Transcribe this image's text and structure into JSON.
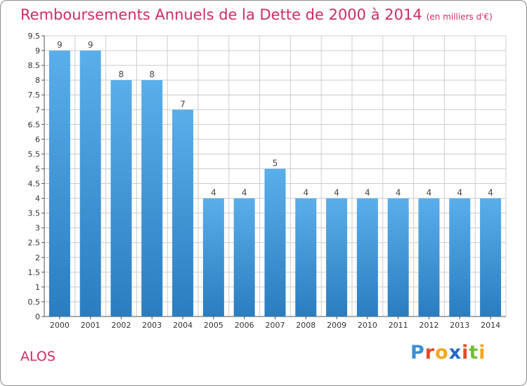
{
  "title": "Remboursements Annuels de la Dette de 2000 à 2014",
  "subtitle": "(en milliers d'€)",
  "commune": "ALOS",
  "logo": {
    "text": "Proxiti",
    "colors": [
      "#3b8fd6",
      "#e14b2b",
      "#f4a61c",
      "#2a67c4",
      "#e14b2b",
      "#6fbf3a",
      "#f4a61c"
    ]
  },
  "colors": {
    "bar_top": "#5aaeea",
    "bar_bottom": "#2a7dc0",
    "title": "#cf2c63",
    "grid": "#cccccc"
  },
  "chart_data": {
    "type": "bar",
    "categories": [
      "2000",
      "2001",
      "2002",
      "2003",
      "2004",
      "2005",
      "2006",
      "2007",
      "2008",
      "2009",
      "2010",
      "2011",
      "2012",
      "2013",
      "2014"
    ],
    "values": [
      9,
      9,
      8,
      8,
      7,
      4,
      4,
      5,
      4,
      4,
      4,
      4,
      4,
      4,
      4
    ],
    "data_labels": [
      "9",
      "9",
      "8",
      "8",
      "7",
      "4",
      "4",
      "5",
      "4",
      "4",
      "4",
      "4",
      "4",
      "4",
      "4"
    ],
    "yticks": [
      "0",
      "0.5",
      "1",
      "1.5",
      "2",
      "2.5",
      "3",
      "3.5",
      "4",
      "4.5",
      "5",
      "5.5",
      "6",
      "6.5",
      "7",
      "7.5",
      "8",
      "8.5",
      "9",
      "9.5"
    ],
    "ylim": [
      0,
      9.5
    ],
    "grid": true,
    "title": "Remboursements Annuels de la Dette de 2000 à 2014",
    "xlabel": "",
    "ylabel": ""
  }
}
